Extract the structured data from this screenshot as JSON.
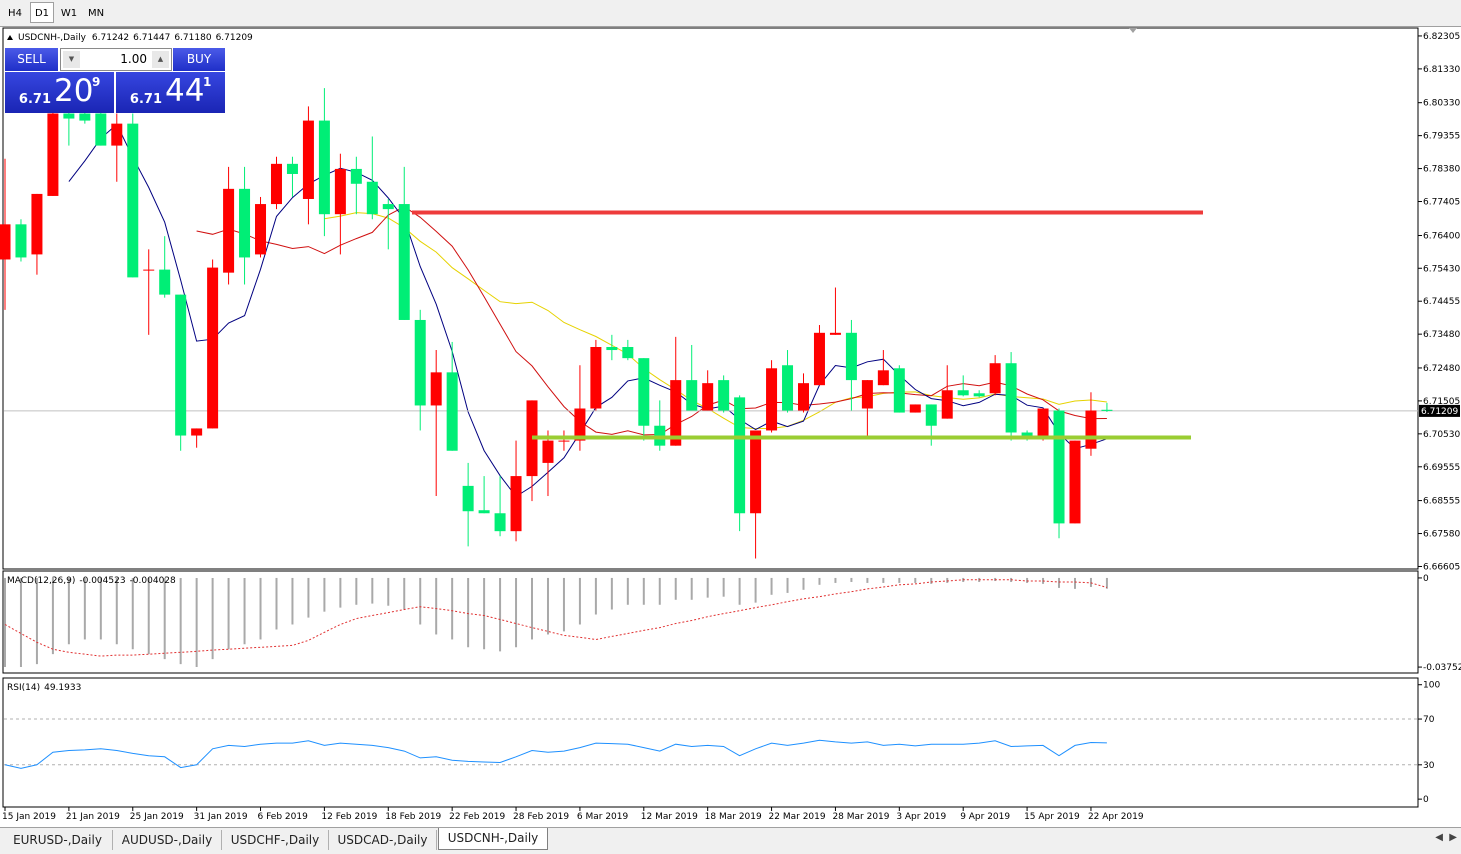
{
  "toolbar": {
    "timeframes": [
      "H4",
      "D1",
      "W1",
      "MN"
    ],
    "active": 1
  },
  "tabs": {
    "items": [
      "EURUSD-,Daily",
      "AUDUSD-,Daily",
      "USDCHF-,Daily",
      "USDCAD-,Daily",
      "USDCNH-,Daily"
    ],
    "active": 4
  },
  "trade_panel": {
    "sell": "SELL",
    "buy": "BUY",
    "lots": "1.00",
    "bid": {
      "big": "6.71",
      "pips": "20",
      "point": "9"
    },
    "ask": {
      "big": "6.71",
      "pips": "44",
      "point": "1"
    }
  },
  "chart_data": {
    "type": "candlestick",
    "title": "USDCNH-,Daily",
    "last_labels": [
      "6.71242",
      "6.71447",
      "6.71180",
      "6.71209"
    ],
    "categories": [
      "15 Jan 2019",
      null,
      null,
      null,
      "21 Jan 2019",
      null,
      null,
      null,
      "25 Jan 2019",
      null,
      null,
      null,
      "31 Jan 2019",
      null,
      null,
      null,
      "6 Feb 2019",
      null,
      null,
      null,
      "12 Feb 2019",
      null,
      null,
      null,
      "18 Feb 2019",
      null,
      null,
      null,
      "22 Feb 2019",
      null,
      null,
      null,
      "28 Feb 2019",
      null,
      null,
      null,
      "6 Mar 2019",
      null,
      null,
      null,
      "12 Mar 2019",
      null,
      null,
      null,
      "18 Mar 2019",
      null,
      null,
      null,
      "22 Mar 2019",
      null,
      null,
      null,
      "28 Mar 2019",
      null,
      null,
      null,
      "3 Apr 2019",
      null,
      null,
      null,
      "9 Apr 2019",
      null,
      null,
      null,
      "15 Apr 2019",
      null,
      null,
      null,
      "22 Apr 2019",
      null
    ],
    "open": [
      6.7569,
      6.7673,
      6.7584,
      6.7757,
      6.8001,
      6.8001,
      6.8001,
      6.7906,
      6.7971,
      6.7539,
      6.7539,
      6.7465,
      6.7048,
      6.7069,
      6.753,
      6.7778,
      6.7584,
      6.7733,
      6.7852,
      6.7748,
      6.798,
      6.7703,
      6.7837,
      6.7799,
      6.7733,
      6.7733,
      6.739,
      6.7137,
      6.7235,
      6.6899,
      6.6827,
      6.6818,
      6.6765,
      6.6928,
      6.6967,
      6.7033,
      6.7033,
      6.7128,
      6.731,
      6.731,
      6.7277,
      6.7077,
      6.7018,
      6.7212,
      6.7122,
      6.7212,
      6.7161,
      6.6818,
      6.7063,
      6.7256,
      6.7122,
      6.7197,
      6.7346,
      6.7352,
      6.7128,
      6.7197,
      6.7247,
      6.7116,
      6.714,
      6.7098,
      6.7182,
      6.7173,
      6.7173,
      6.7262,
      6.7057,
      6.7039,
      6.7122,
      6.6788,
      6.7009,
      6.71242
    ],
    "high": [
      6.7867,
      6.7688,
      6.7763,
      6.8046,
      6.8046,
      6.8022,
      6.8022,
      6.8001,
      6.8001,
      6.7599,
      6.7638,
      6.7465,
      6.7069,
      6.7569,
      6.7843,
      6.7843,
      6.7754,
      6.7873,
      6.7873,
      6.8022,
      6.8076,
      6.7882,
      6.7873,
      6.7933,
      6.7748,
      6.7843,
      6.742,
      6.7301,
      6.7325,
      6.6967,
      6.6928,
      6.6928,
      6.7033,
      6.7152,
      6.7063,
      6.7063,
      6.7256,
      6.7331,
      6.7346,
      6.7331,
      6.7277,
      6.7152,
      6.734,
      6.7316,
      6.7241,
      6.7226,
      6.7167,
      6.7063,
      6.7271,
      6.7301,
      6.7232,
      6.7375,
      6.7486,
      6.739,
      6.7212,
      6.7301,
      6.7256,
      6.714,
      6.714,
      6.7256,
      6.7226,
      6.7182,
      6.7286,
      6.7295,
      6.7063,
      6.7128,
      6.7128,
      6.7033,
      6.7176,
      6.71447
    ],
    "low": [
      6.742,
      6.7563,
      6.7524,
      6.7757,
      6.7906,
      6.7971,
      6.7906,
      6.7799,
      6.7516,
      6.7346,
      6.7456,
      6.7003,
      6.7012,
      6.7069,
      6.7495,
      6.7495,
      6.7575,
      6.7718,
      6.7754,
      6.7673,
      6.7638,
      6.7584,
      6.7703,
      6.7688,
      6.7599,
      6.739,
      6.7063,
      6.6869,
      6.7003,
      6.672,
      6.6818,
      6.675,
      6.6735,
      6.6854,
      6.6869,
      6.7003,
      6.7003,
      6.7122,
      6.7271,
      6.7271,
      6.7033,
      6.7003,
      6.7018,
      6.7122,
      6.7122,
      6.7116,
      6.6765,
      6.6684,
      6.7057,
      6.7116,
      6.7116,
      6.7197,
      6.7346,
      6.7122,
      6.7048,
      6.7197,
      6.7116,
      6.7116,
      6.7018,
      6.7098,
      6.7164,
      6.7161,
      6.7167,
      6.7033,
      6.7033,
      6.7033,
      6.6744,
      6.6788,
      6.6988,
      6.7118
    ],
    "close": [
      6.7673,
      6.7575,
      6.7763,
      6.8001,
      6.7986,
      6.798,
      6.7906,
      6.7971,
      6.7516,
      6.7539,
      6.7465,
      6.7048,
      6.7069,
      6.7545,
      6.7778,
      6.7575,
      6.7733,
      6.7852,
      6.7822,
      6.798,
      6.7703,
      6.7837,
      6.7793,
      6.7703,
      6.7718,
      6.739,
      6.7137,
      6.7235,
      6.7003,
      6.6824,
      6.6818,
      6.6765,
      6.6928,
      6.7152,
      6.7033,
      6.7033,
      6.7128,
      6.731,
      6.7301,
      6.7277,
      6.7077,
      6.7018,
      6.7212,
      6.7122,
      6.7203,
      6.7122,
      6.6818,
      6.7063,
      6.7247,
      6.7122,
      6.7203,
      6.7352,
      6.7352,
      6.7212,
      6.7212,
      6.7241,
      6.7116,
      6.714,
      6.7077,
      6.7182,
      6.7167,
      6.7164,
      6.7262,
      6.7057,
      6.7039,
      6.7128,
      6.6788,
      6.7033,
      6.7122,
      6.71209
    ],
    "up_color": "#ff0000",
    "down_color": "#00ee76",
    "ylim": [
      6.6656,
      6.8254
    ],
    "yticks": [
      {
        "value": 6.82305,
        "label": "6.82305"
      },
      {
        "value": 6.8133,
        "label": "6.81330"
      },
      {
        "value": 6.8033,
        "label": "6.80330"
      },
      {
        "value": 6.79355,
        "label": "6.79355"
      },
      {
        "value": 6.7838,
        "label": "6.78380"
      },
      {
        "value": 6.77405,
        "label": "6.77405"
      },
      {
        "value": 6.764,
        "label": "6.76400"
      },
      {
        "value": 6.7543,
        "label": "6.75430"
      },
      {
        "value": 6.74455,
        "label": "6.74455"
      },
      {
        "value": 6.7348,
        "label": "6.73480"
      },
      {
        "value": 6.7248,
        "label": "6.72480"
      },
      {
        "value": 6.71505,
        "label": "6.71505"
      },
      {
        "value": 6.7053,
        "label": "6.70530"
      },
      {
        "value": 6.69555,
        "label": "6.69555"
      },
      {
        "value": 6.68555,
        "label": "6.68555"
      },
      {
        "value": 6.6758,
        "label": "6.67580"
      },
      {
        "value": 6.66605,
        "label": "6.66605"
      }
    ],
    "levels": [
      {
        "value": 6.7708,
        "color": "#ee3b3b"
      },
      {
        "value": 6.7042,
        "color": "#9acd32"
      }
    ],
    "macd": {
      "title": "MACD(12,26,9)",
      "values": [
        -0.0375,
        -0.0375,
        -0.0363,
        -0.0321,
        -0.0279,
        -0.0259,
        -0.0259,
        -0.0279,
        -0.03,
        -0.0321,
        -0.0342,
        -0.0363,
        -0.0375,
        -0.0342,
        -0.03,
        -0.0279,
        -0.0259,
        -0.0217,
        -0.0196,
        -0.0167,
        -0.0142,
        -0.0125,
        -0.0113,
        -0.0108,
        -0.0117,
        -0.0133,
        -0.0196,
        -0.0238,
        -0.0259,
        -0.0292,
        -0.03,
        -0.0309,
        -0.0292,
        -0.0259,
        -0.0238,
        -0.0225,
        -0.0196,
        -0.0154,
        -0.0133,
        -0.0113,
        -0.0113,
        -0.0113,
        -0.0092,
        -0.0092,
        -0.0083,
        -0.0079,
        -0.0113,
        -0.0104,
        -0.0071,
        -0.0063,
        -0.005,
        -0.0029,
        -0.0021,
        -0.0017,
        -0.0021,
        -0.0021,
        -0.0021,
        -0.0021,
        -0.0025,
        -0.0021,
        -0.0017,
        -0.0017,
        -0.0013,
        -0.0017,
        -0.0021,
        -0.0025,
        -0.0042,
        -0.0046,
        -0.0038,
        -0.004523
      ],
      "signal": [
        -0.0196,
        -0.0234,
        -0.0271,
        -0.03,
        -0.0313,
        -0.0321,
        -0.0329,
        -0.0325,
        -0.0325,
        -0.0321,
        -0.0317,
        -0.0313,
        -0.0309,
        -0.0304,
        -0.03,
        -0.0296,
        -0.0292,
        -0.0288,
        -0.0284,
        -0.0263,
        -0.0229,
        -0.0196,
        -0.0171,
        -0.0158,
        -0.0146,
        -0.0133,
        -0.0121,
        -0.0129,
        -0.0138,
        -0.015,
        -0.0158,
        -0.0175,
        -0.0192,
        -0.0209,
        -0.0225,
        -0.0242,
        -0.025,
        -0.0259,
        -0.0246,
        -0.0234,
        -0.0221,
        -0.0209,
        -0.0192,
        -0.0179,
        -0.0163,
        -0.015,
        -0.0138,
        -0.0125,
        -0.0113,
        -0.01,
        -0.0088,
        -0.0079,
        -0.0067,
        -0.0058,
        -0.0046,
        -0.0038,
        -0.0029,
        -0.0025,
        -0.0017,
        -0.0013,
        -0.0008,
        -0.0008,
        -0.0008,
        -0.0008,
        -0.0013,
        -0.0013,
        -0.0017,
        -0.0017,
        -0.0021,
        -0.004028
      ],
      "hist_color": "#a9a9a9",
      "signal_color": "#e03030",
      "ylim": [
        -0.0396,
        0.0025
      ],
      "yticks": [
        0,
        -0.037529
      ]
    },
    "rsi": {
      "title": "RSI(14)",
      "values": [
        30,
        26.9,
        30,
        41,
        42.5,
        43,
        44,
        42.5,
        40,
        38,
        37,
        27.6,
        30,
        44,
        47,
        46,
        48,
        49,
        49,
        51,
        47,
        49,
        48,
        47,
        45,
        42,
        36,
        37,
        34,
        33,
        32.5,
        32,
        37,
        42.5,
        41,
        42,
        45,
        49,
        48.5,
        48,
        45,
        42,
        48,
        46,
        47,
        46,
        38,
        44,
        49,
        47,
        49,
        51.5,
        50,
        49,
        50,
        47,
        48,
        46.5,
        48,
        48,
        48,
        49,
        51,
        46,
        46.5,
        47,
        38,
        47,
        49.5,
        49.1933
      ],
      "color": "#1e90ff",
      "ylim": [
        -6,
        105
      ],
      "yticks": [
        100,
        70,
        30,
        0
      ]
    }
  }
}
